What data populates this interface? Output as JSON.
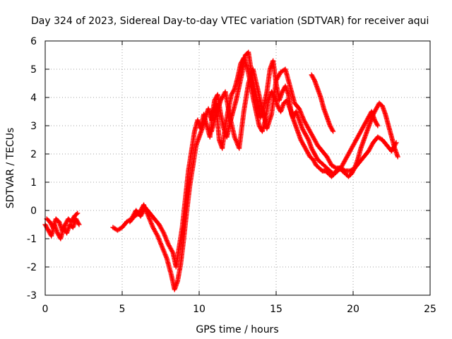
{
  "chart_data": {
    "type": "scatter",
    "title": "Day 324 of 2023, Sidereal Day-to-day VTEC variation (SDTVAR) for receiver aqui",
    "xlabel": "GPS time / hours",
    "ylabel": "SDTVAR / TECUs",
    "xlim": [
      0,
      25
    ],
    "ylim": [
      -3,
      6
    ],
    "xticks": [
      "0",
      "5",
      "10",
      "15",
      "20",
      "25"
    ],
    "yticks": [
      "-3",
      "-2",
      "-1",
      "0",
      "1",
      "2",
      "3",
      "4",
      "5",
      "6"
    ],
    "grid": true,
    "marker": "plus",
    "series": [
      {
        "name": "SDTVAR",
        "color": "#ff0000",
        "x": [
          0.0,
          0.2,
          0.4,
          0.6,
          0.8,
          1.0,
          1.2,
          1.4,
          1.6,
          1.8,
          2.0,
          2.2
        ],
        "y": [
          -0.5,
          -0.7,
          -0.9,
          -0.5,
          -0.8,
          -1.0,
          -0.6,
          -0.8,
          -0.5,
          -0.6,
          -0.3,
          -0.5
        ]
      },
      {
        "name": "SDTVAR",
        "color": "#ff0000",
        "x": [
          0.1,
          0.3,
          0.5,
          0.7,
          0.9,
          1.1,
          1.3,
          1.5,
          1.7,
          1.9,
          2.1
        ],
        "y": [
          -0.3,
          -0.4,
          -0.6,
          -0.3,
          -0.4,
          -0.7,
          -0.5,
          -0.3,
          -0.4,
          -0.2,
          -0.1
        ]
      },
      {
        "name": "SDTVAR",
        "color": "#ff0000",
        "x": [
          4.4,
          4.7,
          5.0,
          5.3,
          5.6,
          5.9,
          6.2,
          6.5,
          6.8,
          7.1,
          7.4,
          7.7,
          8.0,
          8.3,
          8.5,
          8.7,
          8.9,
          9.1,
          9.3,
          9.5,
          9.7,
          9.9,
          10.1,
          10.3,
          10.5,
          10.7,
          10.9,
          11.1,
          11.3,
          11.5,
          11.7,
          11.9,
          12.1,
          12.3,
          12.5,
          12.7,
          12.9,
          13.1,
          13.3,
          13.5,
          13.7,
          13.9,
          14.1,
          14.3,
          14.5,
          14.7,
          14.9,
          15.1,
          15.3,
          15.5,
          15.7,
          15.9,
          16.1,
          16.3,
          16.5,
          16.7,
          16.9,
          17.1,
          17.3,
          17.5,
          17.7,
          17.9,
          18.1,
          18.3,
          18.5,
          18.7,
          18.9,
          19.1,
          19.3,
          19.5,
          19.7,
          19.9,
          20.1,
          20.3,
          20.5,
          20.7,
          20.9,
          21.1,
          21.3,
          21.5,
          21.7,
          21.9,
          22.1,
          22.3,
          22.5,
          22.7,
          22.9
        ],
        "y": [
          -0.6,
          -0.7,
          -0.6,
          -0.4,
          -0.3,
          0.0,
          -0.2,
          0.1,
          -0.1,
          -0.3,
          -0.5,
          -0.8,
          -1.2,
          -1.5,
          -2.0,
          -1.3,
          -0.6,
          0.4,
          1.4,
          2.1,
          2.8,
          3.2,
          2.9,
          3.4,
          3.0,
          2.6,
          3.5,
          3.8,
          2.5,
          2.2,
          3.0,
          3.6,
          4.1,
          4.3,
          4.7,
          5.2,
          5.4,
          5.1,
          4.6,
          4.0,
          3.5,
          3.0,
          2.8,
          3.2,
          3.9,
          4.2,
          4.0,
          3.7,
          3.5,
          3.8,
          3.9,
          3.6,
          3.3,
          3.5,
          3.2,
          2.9,
          2.7,
          2.5,
          2.2,
          2.0,
          1.8,
          1.7,
          1.6,
          1.5,
          1.4,
          1.3,
          1.4,
          1.5,
          1.4,
          1.3,
          1.2,
          1.3,
          1.5,
          1.8,
          2.2,
          2.5,
          2.8,
          3.1,
          3.4,
          3.6,
          3.8,
          3.7,
          3.4,
          3.0,
          2.6,
          2.2,
          1.9
        ]
      },
      {
        "name": "SDTVAR",
        "color": "#ff0000",
        "x": [
          5.5,
          5.8,
          6.1,
          6.4,
          6.7,
          7.0,
          7.3,
          7.6,
          7.9,
          8.2,
          8.4,
          8.6,
          8.8,
          9.0,
          9.2,
          9.4,
          9.6,
          9.8,
          10.0,
          10.2,
          10.4,
          10.6,
          10.8,
          11.0,
          11.2,
          11.4,
          11.6,
          11.8,
          12.0,
          12.2,
          12.4,
          12.6,
          12.8,
          13.0,
          13.2,
          13.4,
          13.6,
          13.8,
          14.0,
          14.2,
          14.4,
          14.6,
          14.8,
          15.0,
          15.2,
          15.4,
          15.6,
          15.8,
          16.0,
          16.2,
          16.4,
          16.6,
          16.8,
          17.0,
          17.2,
          17.4,
          17.6,
          17.8,
          18.0,
          18.2,
          18.4,
          18.6,
          18.8,
          19.0,
          19.2,
          19.4,
          19.6,
          19.8,
          20.0,
          20.2,
          20.4,
          20.6,
          20.8,
          21.0,
          21.2,
          21.4,
          21.6
        ],
        "y": [
          -0.4,
          -0.2,
          -0.1,
          0.2,
          -0.2,
          -0.6,
          -0.9,
          -1.3,
          -1.7,
          -2.3,
          -2.8,
          -2.5,
          -1.9,
          -1.0,
          0.0,
          0.9,
          1.6,
          2.3,
          2.6,
          2.9,
          3.3,
          3.6,
          3.2,
          3.9,
          4.1,
          3.4,
          2.9,
          2.6,
          3.1,
          3.5,
          3.9,
          4.4,
          4.9,
          5.5,
          5.6,
          4.9,
          4.3,
          3.8,
          3.3,
          3.7,
          4.2,
          5.0,
          5.3,
          4.5,
          3.9,
          4.2,
          4.4,
          4.1,
          3.4,
          3.1,
          2.8,
          2.5,
          2.3,
          2.1,
          1.9,
          1.8,
          1.6,
          1.5,
          1.4,
          1.4,
          1.3,
          1.2,
          1.3,
          1.4,
          1.5,
          1.7,
          1.9,
          2.1,
          2.3,
          2.5,
          2.7,
          2.9,
          3.1,
          3.3,
          3.5,
          3.2,
          3.0
        ]
      },
      {
        "name": "SDTVAR",
        "color": "#ff0000",
        "x": [
          10.8,
          11.1,
          11.4,
          11.7,
          12.0,
          12.3,
          12.6,
          12.9,
          13.2,
          13.5,
          13.8,
          14.1,
          14.4,
          14.7,
          15.0,
          15.3,
          15.6,
          15.9,
          16.2,
          16.5,
          16.8,
          17.1,
          17.4,
          17.7,
          18.0,
          18.3,
          18.6,
          18.9,
          19.2,
          19.5,
          19.8,
          20.1,
          20.4,
          20.7,
          21.0,
          21.3,
          21.6,
          21.9,
          22.2,
          22.5,
          22.8
        ],
        "y": [
          2.8,
          3.4,
          3.9,
          4.2,
          3.3,
          2.6,
          2.2,
          3.5,
          4.5,
          5.0,
          4.3,
          3.6,
          2.9,
          3.4,
          4.6,
          4.9,
          5.0,
          4.4,
          3.8,
          3.6,
          3.2,
          2.9,
          2.6,
          2.3,
          2.1,
          1.9,
          1.6,
          1.5,
          1.5,
          1.4,
          1.4,
          1.5,
          1.7,
          1.9,
          2.1,
          2.4,
          2.6,
          2.5,
          2.3,
          2.1,
          2.4
        ]
      },
      {
        "name": "SDTVAR",
        "color": "#ff0000",
        "x": [
          17.3,
          17.5,
          17.7,
          17.9,
          18.1,
          18.3,
          18.5,
          18.7
        ],
        "y": [
          4.8,
          4.6,
          4.3,
          4.0,
          3.6,
          3.3,
          3.0,
          2.8
        ]
      }
    ]
  }
}
